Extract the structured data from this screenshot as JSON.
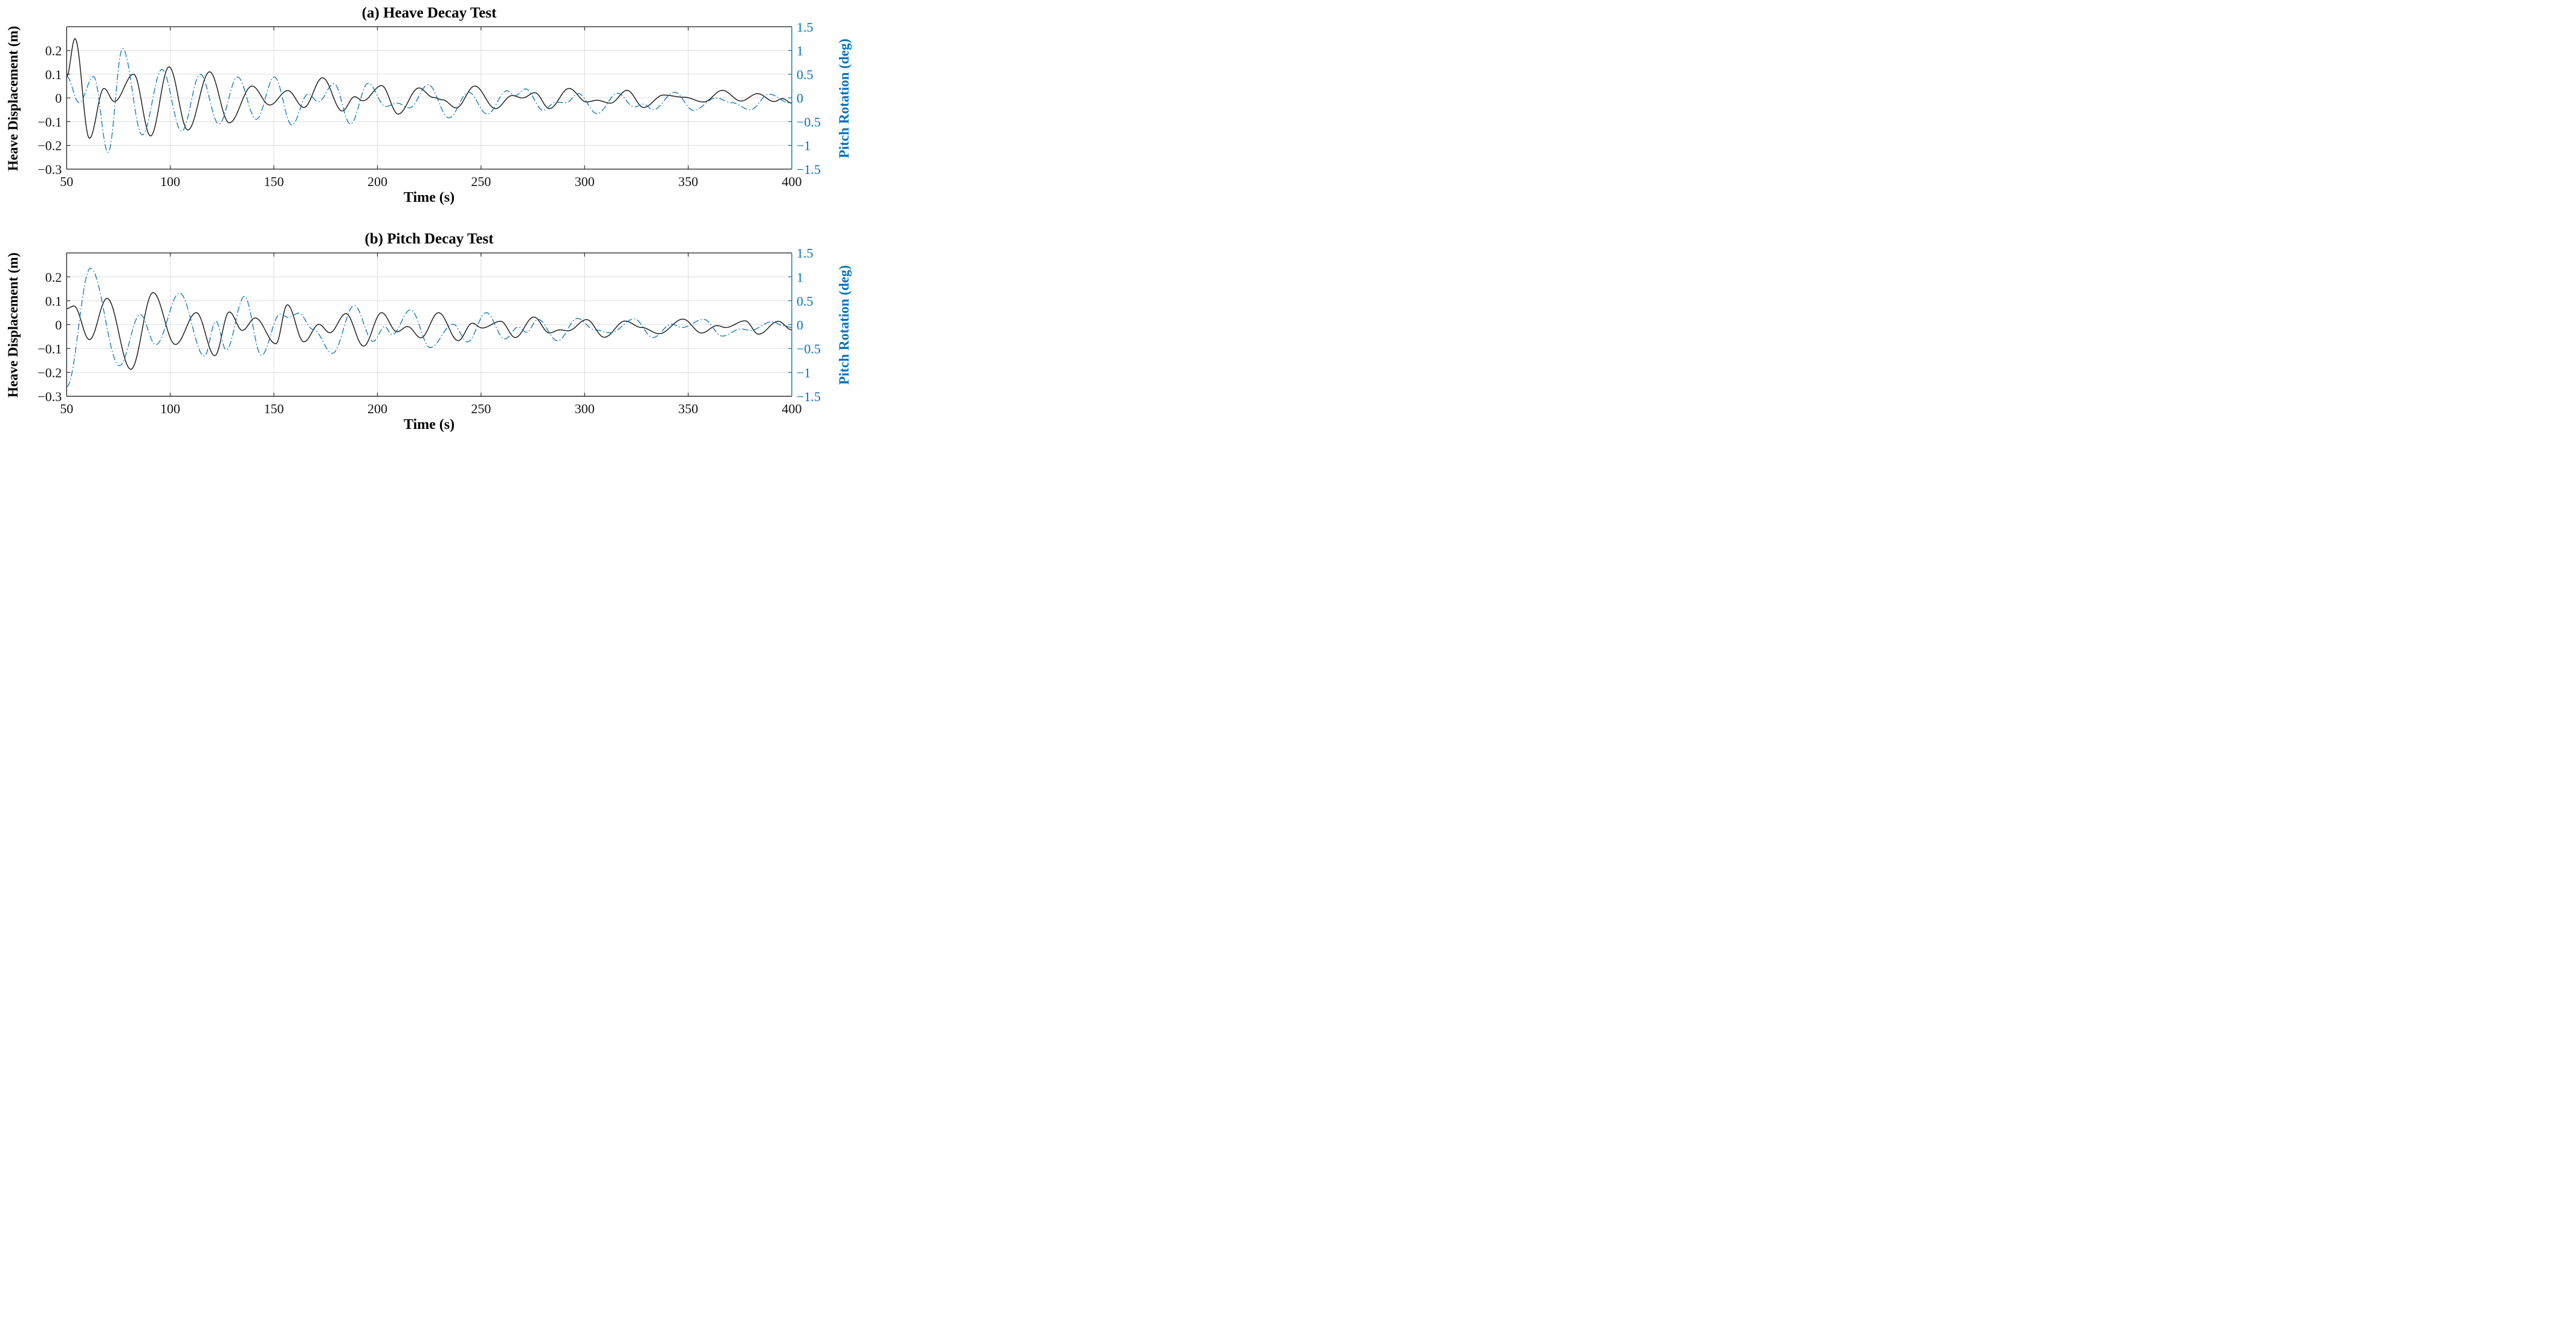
{
  "figure_colors": {
    "heave_line": "#1a1a1a",
    "pitch_line": "#0072BD",
    "grid": "#d9d9d9",
    "spine": "#2b2b2b",
    "right_spine": "#0072BD",
    "background": "#ffffff"
  },
  "chart_data": [
    {
      "type": "line",
      "title": "(a) Heave Decay Test",
      "xlabel": "Time (s)",
      "ylabel_left": "Heave Displacement (m)",
      "ylabel_right": "Pitch Rotation (deg)",
      "xlim": [
        50,
        400
      ],
      "x_ticks": [
        [
          "50",
          50
        ],
        [
          "100",
          100
        ],
        [
          "150",
          150
        ],
        [
          "200",
          200
        ],
        [
          "250",
          250
        ],
        [
          "300",
          300
        ],
        [
          "350",
          350
        ],
        [
          "400",
          400
        ]
      ],
      "left_ylim": [
        -0.3,
        0.3
      ],
      "left_ticks": [
        [
          "0.2",
          0.2
        ],
        [
          "0.1",
          0.1
        ],
        [
          "0",
          0
        ],
        [
          "−0.1",
          -0.1
        ],
        [
          "−0.2",
          -0.2
        ],
        [
          "−0.3",
          -0.3
        ]
      ],
      "right_ylim": [
        -1.5,
        1.5
      ],
      "right_ticks": [
        [
          "1.5",
          1.5
        ],
        [
          "1",
          1
        ],
        [
          "0.5",
          0.5
        ],
        [
          "0",
          0
        ],
        [
          "−0.5",
          -0.5
        ],
        [
          "−1",
          -1
        ],
        [
          "−1.5",
          -1.5
        ]
      ],
      "grid_x": [
        100,
        150,
        200,
        250,
        300,
        350
      ],
      "grid_y_left": [
        0.2,
        0.1,
        0,
        -0.1,
        -0.2
      ],
      "series": [
        {
          "name": "heave-displacement",
          "axis": "left",
          "style": "solid",
          "extrema": [
            [
              50,
              0.09
            ],
            [
              54,
              0.25
            ],
            [
              61,
              -0.17
            ],
            [
              68,
              0.04
            ],
            [
              73,
              -0.015
            ],
            [
              82.3,
              0.1
            ],
            [
              90.5,
              -0.16
            ],
            [
              99.4,
              0.131
            ],
            [
              108.5,
              -0.135
            ],
            [
              119,
              0.11
            ],
            [
              128.5,
              -0.105
            ],
            [
              139.5,
              0.05
            ],
            [
              148,
              -0.03
            ],
            [
              156.7,
              0.031
            ],
            [
              164.5,
              -0.04
            ],
            [
              173.5,
              0.085
            ],
            [
              183,
              -0.055
            ],
            [
              189,
              0.005
            ],
            [
              193,
              -0.012
            ],
            [
              202,
              0.052
            ],
            [
              210,
              -0.068
            ],
            [
              220,
              0.042
            ],
            [
              227,
              0.002
            ],
            [
              231.5,
              -0.008
            ],
            [
              238,
              -0.042
            ],
            [
              247,
              0.05
            ],
            [
              257,
              -0.045
            ],
            [
              265,
              0.01
            ],
            [
              270,
              0.0
            ],
            [
              276,
              0.022
            ],
            [
              283,
              -0.045
            ],
            [
              292.5,
              0.04
            ],
            [
              301,
              -0.017
            ],
            [
              306,
              -0.01
            ],
            [
              312.5,
              -0.022
            ],
            [
              320.5,
              0.032
            ],
            [
              328.5,
              -0.04
            ],
            [
              338,
              0.012
            ],
            [
              348,
              0.003
            ],
            [
              357.5,
              -0.017
            ],
            [
              366.5,
              0.032
            ],
            [
              375.5,
              -0.013
            ],
            [
              383.5,
              0.018
            ],
            [
              391.5,
              -0.015
            ],
            [
              395.5,
              -0.003
            ],
            [
              400,
              -0.022
            ]
          ]
        },
        {
          "name": "pitch-rotation",
          "axis": "right",
          "style": "dashdot",
          "extrema": [
            [
              50,
              0.45
            ],
            [
              56,
              -0.1
            ],
            [
              63,
              0.45
            ],
            [
              70,
              -1.15
            ],
            [
              77,
              1.04
            ],
            [
              86.5,
              -0.78
            ],
            [
              96,
              0.6
            ],
            [
              105.5,
              -0.7
            ],
            [
              114.5,
              0.5
            ],
            [
              123.5,
              -0.55
            ],
            [
              132.5,
              0.44
            ],
            [
              141.5,
              -0.45
            ],
            [
              150.3,
              0.44
            ],
            [
              158.7,
              -0.57
            ],
            [
              166.5,
              0.08
            ],
            [
              171.5,
              -0.08
            ],
            [
              179,
              0.3
            ],
            [
              187,
              -0.55
            ],
            [
              195.5,
              0.31
            ],
            [
              204,
              -0.18
            ],
            [
              209.5,
              -0.11
            ],
            [
              215.5,
              -0.21
            ],
            [
              224.5,
              0.28
            ],
            [
              234.5,
              -0.42
            ],
            [
              244,
              0.12
            ],
            [
              253,
              -0.34
            ],
            [
              262.5,
              0.15
            ],
            [
              266.5,
              0.05
            ],
            [
              271.5,
              0.19
            ],
            [
              280,
              -0.26
            ],
            [
              286,
              -0.09
            ],
            [
              291,
              -0.1
            ],
            [
              297,
              0.09
            ],
            [
              306,
              -0.33
            ],
            [
              316,
              0.1
            ],
            [
              324,
              -0.19
            ],
            [
              328.5,
              -0.13
            ],
            [
              333,
              -0.25
            ],
            [
              343.5,
              0.12
            ],
            [
              352.5,
              -0.26
            ],
            [
              363.5,
              0.0
            ],
            [
              371,
              -0.1
            ],
            [
              380,
              -0.25
            ],
            [
              389,
              0.08
            ],
            [
              399,
              -0.105
            ],
            [
              400,
              -0.1
            ]
          ]
        }
      ]
    },
    {
      "type": "line",
      "title": "(b) Pitch Decay Test",
      "xlabel": "Time (s)",
      "ylabel_left": "Heave Displacement (m)",
      "ylabel_right": "Pitch Rotation (deg)",
      "xlim": [
        50,
        400
      ],
      "x_ticks": [
        [
          "50",
          50
        ],
        [
          "100",
          100
        ],
        [
          "150",
          150
        ],
        [
          "200",
          200
        ],
        [
          "250",
          250
        ],
        [
          "300",
          300
        ],
        [
          "350",
          350
        ],
        [
          "400",
          400
        ]
      ],
      "left_ylim": [
        -0.3,
        0.3
      ],
      "left_ticks": [
        [
          "0.2",
          0.2
        ],
        [
          "0.1",
          0.1
        ],
        [
          "0",
          0
        ],
        [
          "−0.1",
          -0.1
        ],
        [
          "−0.2",
          -0.2
        ],
        [
          "−0.3",
          -0.3
        ]
      ],
      "right_ylim": [
        -1.5,
        1.5
      ],
      "right_ticks": [
        [
          "1.5",
          1.5
        ],
        [
          "1",
          1
        ],
        [
          "0.5",
          0.5
        ],
        [
          "0",
          0
        ],
        [
          "−0.5",
          -0.5
        ],
        [
          "−1",
          -1
        ],
        [
          "−1.5",
          -1.5
        ]
      ],
      "grid_x": [
        100,
        150,
        200,
        250,
        300,
        350
      ],
      "grid_y_left": [
        0.2,
        0.1,
        0,
        -0.1,
        -0.2
      ],
      "series": [
        {
          "name": "heave-displacement",
          "axis": "left",
          "style": "solid",
          "extrema": [
            [
              50,
              0.067
            ],
            [
              53.5,
              0.078
            ],
            [
              61,
              -0.063
            ],
            [
              69.5,
              0.11
            ],
            [
              81,
              -0.187
            ],
            [
              91.7,
              0.134
            ],
            [
              102.5,
              -0.083
            ],
            [
              112.6,
              0.05
            ],
            [
              121.5,
              -0.13
            ],
            [
              128.5,
              0.053
            ],
            [
              134.8,
              -0.024
            ],
            [
              141,
              0.028
            ],
            [
              151,
              -0.08
            ],
            [
              156.5,
              0.083
            ],
            [
              164.5,
              -0.072
            ],
            [
              171.8,
              0.001
            ],
            [
              177,
              -0.034
            ],
            [
              184.8,
              0.046
            ],
            [
              193.3,
              -0.09
            ],
            [
              202,
              0.05
            ],
            [
              209.5,
              -0.03
            ],
            [
              214.5,
              -0.008
            ],
            [
              221,
              -0.055
            ],
            [
              229.5,
              0.05
            ],
            [
              239,
              -0.067
            ],
            [
              245.8,
              0.006
            ],
            [
              250.5,
              -0.014
            ],
            [
              259.5,
              0.014
            ],
            [
              266.5,
              -0.054
            ],
            [
              275.5,
              0.032
            ],
            [
              283,
              -0.035
            ],
            [
              288,
              -0.022
            ],
            [
              292,
              -0.026
            ],
            [
              301,
              0.021
            ],
            [
              309.5,
              -0.053
            ],
            [
              319.5,
              0.015
            ],
            [
              327.5,
              -0.012
            ],
            [
              336,
              -0.038
            ],
            [
              347.5,
              0.023
            ],
            [
              356.5,
              -0.035
            ],
            [
              364,
              -0.004
            ],
            [
              368,
              -0.012
            ],
            [
              377.5,
              0.016
            ],
            [
              384,
              -0.04
            ],
            [
              393.5,
              0.014
            ],
            [
              400,
              -0.022
            ]
          ]
        },
        {
          "name": "pitch-rotation",
          "axis": "right",
          "style": "dashdot",
          "extrema": [
            [
              50,
              -1.3
            ],
            [
              61.5,
              1.18
            ],
            [
              75.5,
              -0.86
            ],
            [
              85.5,
              0.21
            ],
            [
              93,
              -0.42
            ],
            [
              104.5,
              0.66
            ],
            [
              116.5,
              -0.66
            ],
            [
              122,
              0.07
            ],
            [
              127,
              -0.53
            ],
            [
              135.8,
              0.59
            ],
            [
              144,
              -0.64
            ],
            [
              153,
              0.22
            ],
            [
              157,
              0.15
            ],
            [
              162,
              0.24
            ],
            [
              169,
              -0.1
            ],
            [
              178.3,
              -0.6
            ],
            [
              188.8,
              0.4
            ],
            [
              198,
              -0.35
            ],
            [
              203.5,
              -0.04
            ],
            [
              207,
              -0.21
            ],
            [
              216,
              0.31
            ],
            [
              225.5,
              -0.48
            ],
            [
              236.5,
              0.01
            ],
            [
              243.5,
              -0.36
            ],
            [
              252.5,
              0.25
            ],
            [
              261.5,
              -0.3
            ],
            [
              268,
              -0.05
            ],
            [
              272,
              -0.16
            ],
            [
              277.5,
              0.11
            ],
            [
              287,
              -0.34
            ],
            [
              296.5,
              0.13
            ],
            [
              305,
              -0.11
            ],
            [
              312.5,
              -0.17
            ],
            [
              324,
              0.12
            ],
            [
              333,
              -0.27
            ],
            [
              342,
              0.01
            ],
            [
              347,
              -0.06
            ],
            [
              357.5,
              0.11
            ],
            [
              366.5,
              -0.24
            ],
            [
              375.5,
              -0.09
            ],
            [
              380,
              -0.12
            ],
            [
              390.5,
              0.06
            ],
            [
              396,
              -0.02
            ],
            [
              400,
              -0.06
            ]
          ]
        }
      ]
    }
  ]
}
